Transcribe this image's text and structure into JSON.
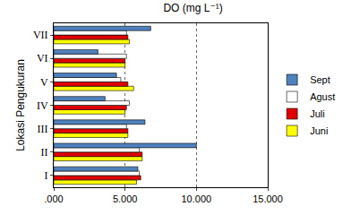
{
  "chart_data": {
    "type": "bar",
    "orientation": "horizontal",
    "title": "DO (mg L⁻¹)",
    "y_label": "Lokasi Pengukuran",
    "categories": [
      "I",
      "II",
      "III",
      "IV",
      "V",
      "VI",
      "VII"
    ],
    "series": [
      {
        "name": "Sept",
        "color": "#4f81bd",
        "values": [
          5.9,
          10.0,
          6.4,
          3.6,
          4.4,
          3.1,
          6.8
        ]
      },
      {
        "name": "Agust",
        "color": "#ffffff",
        "values": [
          6.0,
          6.0,
          5.1,
          5.3,
          4.7,
          5.1,
          5.1
        ]
      },
      {
        "name": "Juli",
        "color": "#e00000",
        "values": [
          6.1,
          6.2,
          5.2,
          5.1,
          5.2,
          5.0,
          5.2
        ]
      },
      {
        "name": "Juni",
        "color": "#ffff00",
        "values": [
          5.8,
          6.2,
          5.2,
          5.0,
          5.6,
          5.0,
          5.3
        ]
      }
    ],
    "xlim": [
      0,
      15
    ],
    "xticks": [
      {
        "value": 0,
        "label": ".000"
      },
      {
        "value": 5,
        "label": "5.000"
      },
      {
        "value": 10,
        "label": "10.000"
      },
      {
        "value": 15,
        "label": "15.000"
      }
    ],
    "grid": true,
    "legend": "right"
  }
}
